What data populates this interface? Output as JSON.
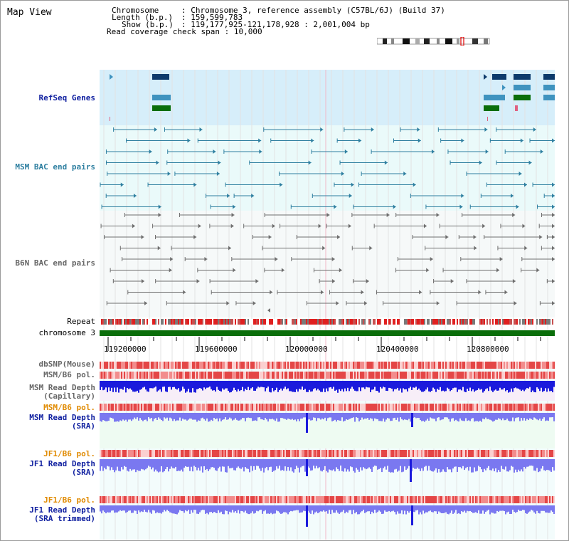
{
  "header": {
    "title": "Map View",
    "chromosome_key": "Chromosome",
    "chromosome_val": "Chromosome 3, reference assembly (C57BL/6J) (Build 37)",
    "length_key": "Length (b.p.)",
    "length_val": "159,599,783",
    "show_key": "Show (b.p.)",
    "show_val": "119,177,925-121,178,928 : 2,001,004 bp",
    "coverage_key": "Read coverage check span",
    "coverage_val": "10,000"
  },
  "tracks": {
    "refseq": "RefSeq Genes",
    "msm_bac": "MSM BAC end pairs",
    "b6n_bac": "B6N BAC end pairs",
    "repeat": "Repeat",
    "chromosome": "chromosome 3",
    "dbsnp": "dbSNP(Mouse)",
    "msm_b6_pol1": "MSM/B6 pol.",
    "msm_depth_cap_1": "MSM Read Depth",
    "msm_depth_cap_2": "(Capillary)",
    "msm_b6_pol2": "MSM/B6 pol.",
    "msm_depth_sra_1": "MSM Read Depth",
    "msm_depth_sra_2": "(SRA)",
    "jf1_b6_pol1": "JF1/B6 pol.",
    "jf1_depth_sra_1": "JF1 Read Depth",
    "jf1_depth_sra_2": "(SRA)",
    "jf1_b6_pol2": "JF1/B6 pol.",
    "jf1_depth_trim_1": "JF1 Read Depth",
    "jf1_depth_trim_2": "(SRA trimmed)"
  },
  "axis": {
    "ticks": [
      "119200000",
      "119600000",
      "120000000",
      "120400000",
      "120800000"
    ]
  },
  "colors": {
    "refseq_bg": "#d6eefa",
    "bac_bg": "#eafafa",
    "msm_pair": "#2e7fa0",
    "b6n_pair": "#6e6e6e",
    "gene_dark": "#0d3a6b",
    "gene_mid": "#3f93bf",
    "gene_green": "#0a6e0a",
    "chrom_bar": "#0a6e0a",
    "snp_red": "#e23a3a",
    "depth_blue": "#1b1bdc",
    "depth_light": "#7a78f0",
    "orange_label": "#e08a00",
    "blue_label": "#1020a0"
  }
}
